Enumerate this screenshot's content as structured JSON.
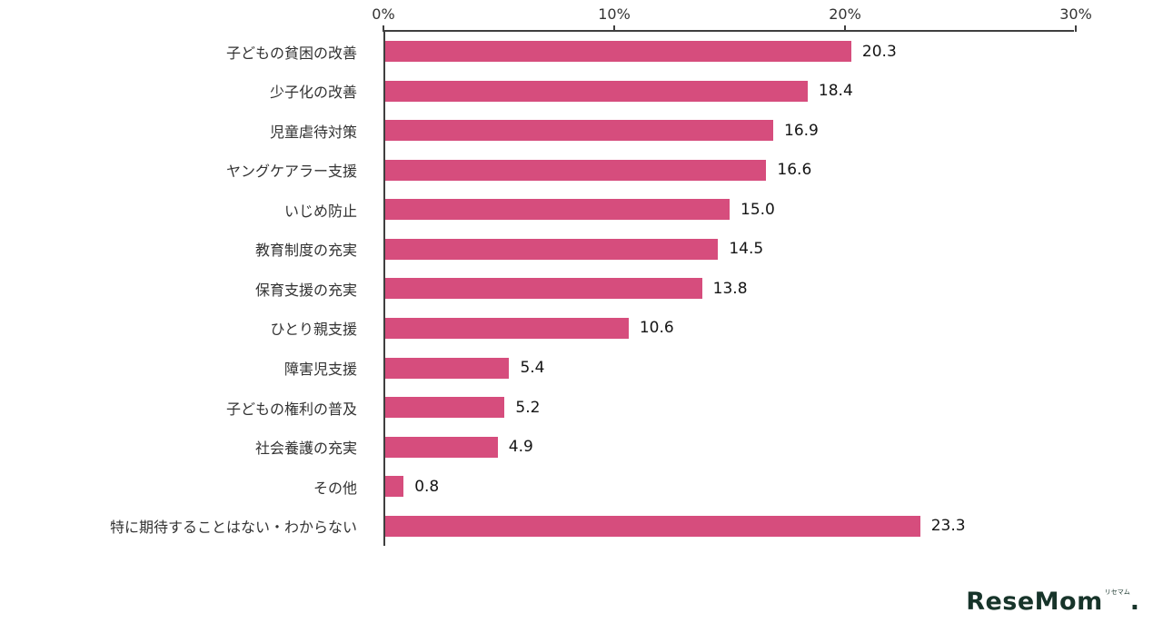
{
  "chart_data": {
    "type": "bar",
    "orientation": "horizontal",
    "title": "",
    "xlabel": "",
    "ylabel": "",
    "xlim": [
      0,
      30
    ],
    "x_ticks": [
      {
        "value": 0,
        "label": "0%"
      },
      {
        "value": 10,
        "label": "10%"
      },
      {
        "value": 20,
        "label": "20%"
      },
      {
        "value": 30,
        "label": "30%"
      }
    ],
    "categories": [
      "子どもの貧困の改善",
      "少子化の改善",
      "児童虐待対策",
      "ヤングケアラー支援",
      "いじめ防止",
      "教育制度の充実",
      "保育支援の充実",
      "ひとり親支援",
      "障害児支援",
      "子どもの権利の普及",
      "社会養護の充実",
      "その他",
      "特に期待することはない・わからない"
    ],
    "values": [
      20.3,
      18.4,
      16.9,
      16.6,
      15.0,
      14.5,
      13.8,
      10.6,
      5.4,
      5.2,
      4.9,
      0.8,
      23.3
    ],
    "value_labels": [
      "20.3",
      "18.4",
      "16.9",
      "16.6",
      "15.0",
      "14.5",
      "13.8",
      "10.6",
      "5.4",
      "5.2",
      "4.9",
      "0.8",
      "23.3"
    ],
    "bar_color": "#d64d7d",
    "axis_color": "#3f3f3f",
    "grid": false,
    "legend": false
  },
  "footer": {
    "logo_text": "ReseMom",
    "logo_small_text": "リセマム",
    "logo_suffix": "."
  }
}
